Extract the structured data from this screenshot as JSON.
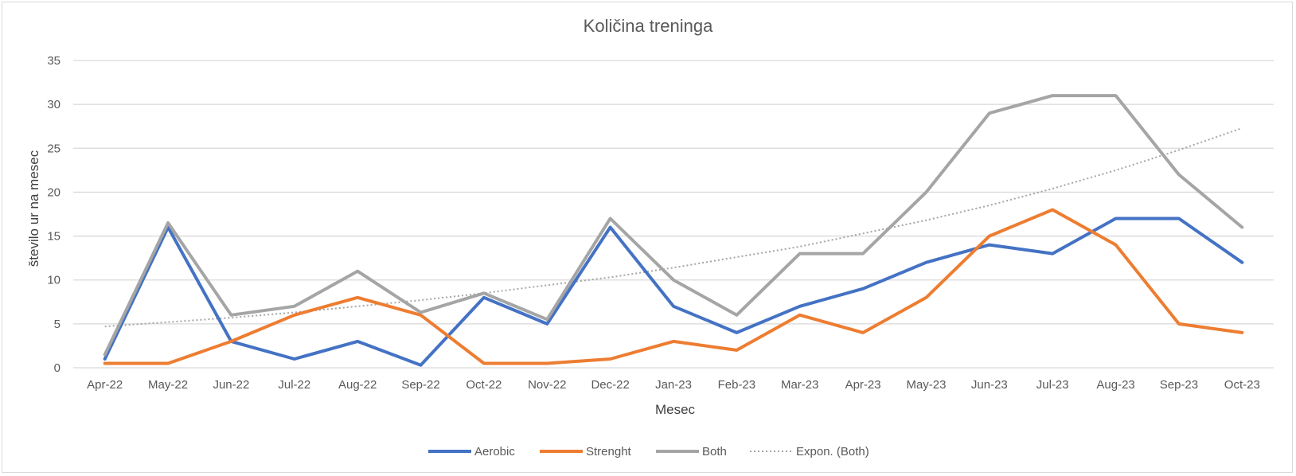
{
  "chart_data": {
    "type": "line",
    "title": "Količina treninga",
    "xlabel": "Mesec",
    "ylabel": "število ur na mesec",
    "ylim": [
      0,
      35
    ],
    "yticks": [
      0,
      5,
      10,
      15,
      20,
      25,
      30,
      35
    ],
    "grid": true,
    "legend_position": "bottom",
    "categories": [
      "Apr-22",
      "May-22",
      "Jun-22",
      "Jul-22",
      "Aug-22",
      "Sep-22",
      "Oct-22",
      "Nov-22",
      "Dec-22",
      "Jan-23",
      "Feb-23",
      "Mar-23",
      "Apr-23",
      "May-23",
      "Jun-23",
      "Jul-23",
      "Aug-23",
      "Sep-23",
      "Oct-23"
    ],
    "series": [
      {
        "name": "Aerobic",
        "color": "#4472c4",
        "style": "solid",
        "values": [
          1,
          16,
          3,
          1,
          3,
          0.3,
          8,
          5,
          16,
          7,
          4,
          7,
          9,
          12,
          14,
          13,
          17,
          17,
          12
        ]
      },
      {
        "name": "Strenght",
        "color": "#ed7d31",
        "style": "solid",
        "values": [
          0.5,
          0.5,
          3,
          6,
          8,
          6,
          0.5,
          0.5,
          1,
          3,
          2,
          6,
          4,
          8,
          15,
          18,
          14,
          5,
          4
        ]
      },
      {
        "name": "Both",
        "color": "#a5a5a5",
        "style": "solid",
        "values": [
          1.5,
          16.5,
          6,
          7,
          11,
          6.3,
          8.5,
          5.5,
          17,
          10,
          6,
          13,
          13,
          20,
          29,
          31,
          31,
          22,
          16
        ]
      },
      {
        "name": "Expon. (Both)",
        "color": "#a5a5a5",
        "style": "dotted",
        "values": [
          4.7,
          5.2,
          5.7,
          6.3,
          7.0,
          7.7,
          8.5,
          9.4,
          10.3,
          11.4,
          12.6,
          13.8,
          15.3,
          16.8,
          18.5,
          20.4,
          22.5,
          24.8,
          27.3
        ]
      }
    ]
  }
}
